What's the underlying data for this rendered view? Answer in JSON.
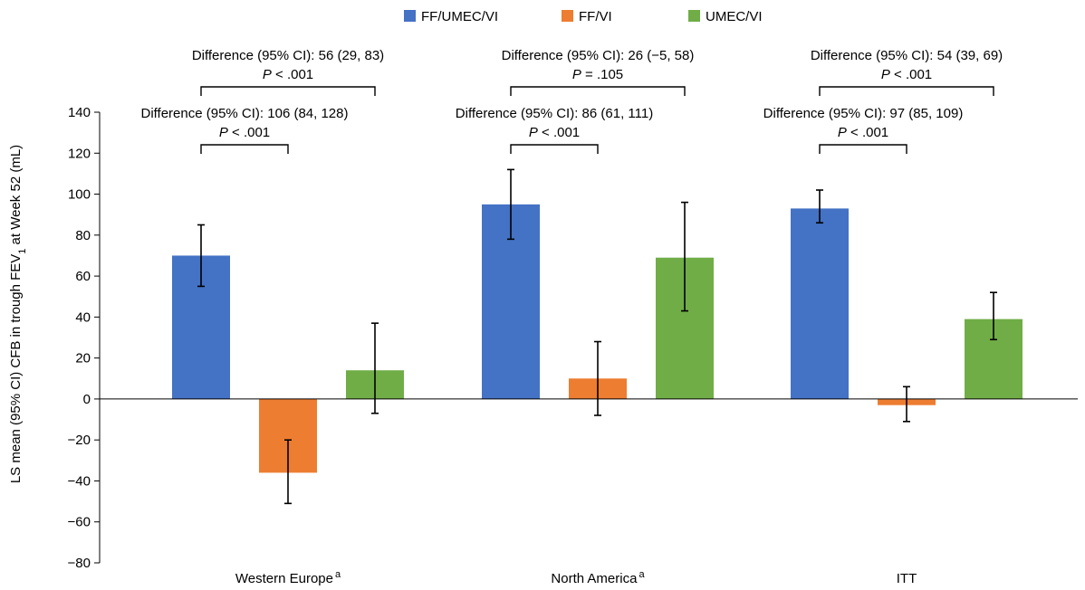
{
  "chart_data": {
    "type": "bar",
    "title": "",
    "ylabel": {
      "prefix": "LS mean (95% CI) CFB in trough FEV",
      "subscript": "1",
      "suffix": " at Week 52 (mL)"
    },
    "ylim": [
      -80,
      140
    ],
    "yticks": [
      -80,
      -60,
      -40,
      -20,
      0,
      20,
      40,
      60,
      80,
      100,
      120,
      140
    ],
    "categories": [
      {
        "label": "Western Europe",
        "superscript": "a"
      },
      {
        "label": "North America",
        "superscript": "a"
      },
      {
        "label": "ITT",
        "superscript": ""
      }
    ],
    "series": [
      {
        "name": "FF/UMEC/VI",
        "color": "#4472C4",
        "values": [
          70,
          95,
          93
        ],
        "ci_low": [
          55,
          78,
          86
        ],
        "ci_high": [
          85,
          112,
          102
        ]
      },
      {
        "name": "FF/VI",
        "color": "#ED7D31",
        "values": [
          -36,
          10,
          -3
        ],
        "ci_low": [
          -51,
          -8,
          -11
        ],
        "ci_high": [
          -20,
          28,
          6
        ]
      },
      {
        "name": "UMEC/VI",
        "color": "#70AD47",
        "values": [
          14,
          69,
          39
        ],
        "ci_low": [
          -7,
          43,
          29
        ],
        "ci_high": [
          37,
          96,
          52
        ]
      }
    ],
    "comparisons": [
      {
        "category": 0,
        "from": 0,
        "to": 2,
        "difference": "Difference (95% CI): 56 (29, 83)",
        "p_prefix": "P",
        "p_value": " < .001"
      },
      {
        "category": 0,
        "from": 0,
        "to": 1,
        "difference": "Difference (95% CI): 106 (84, 128)",
        "p_prefix": "P",
        "p_value": " < .001"
      },
      {
        "category": 1,
        "from": 0,
        "to": 2,
        "difference": "Difference (95% CI): 26 (−5, 58)",
        "p_prefix": "P",
        "p_value": " = .105"
      },
      {
        "category": 1,
        "from": 0,
        "to": 1,
        "difference": "Difference (95% CI): 86 (61, 111)",
        "p_prefix": "P",
        "p_value": " < .001"
      },
      {
        "category": 2,
        "from": 0,
        "to": 2,
        "difference": "Difference (95% CI): 54 (39, 69)",
        "p_prefix": "P",
        "p_value": " < .001"
      },
      {
        "category": 2,
        "from": 0,
        "to": 1,
        "difference": "Difference (95% CI): 97 (85, 109)",
        "p_prefix": "P",
        "p_value": " < .001"
      }
    ],
    "legend_position": "top-center",
    "grid": false
  }
}
